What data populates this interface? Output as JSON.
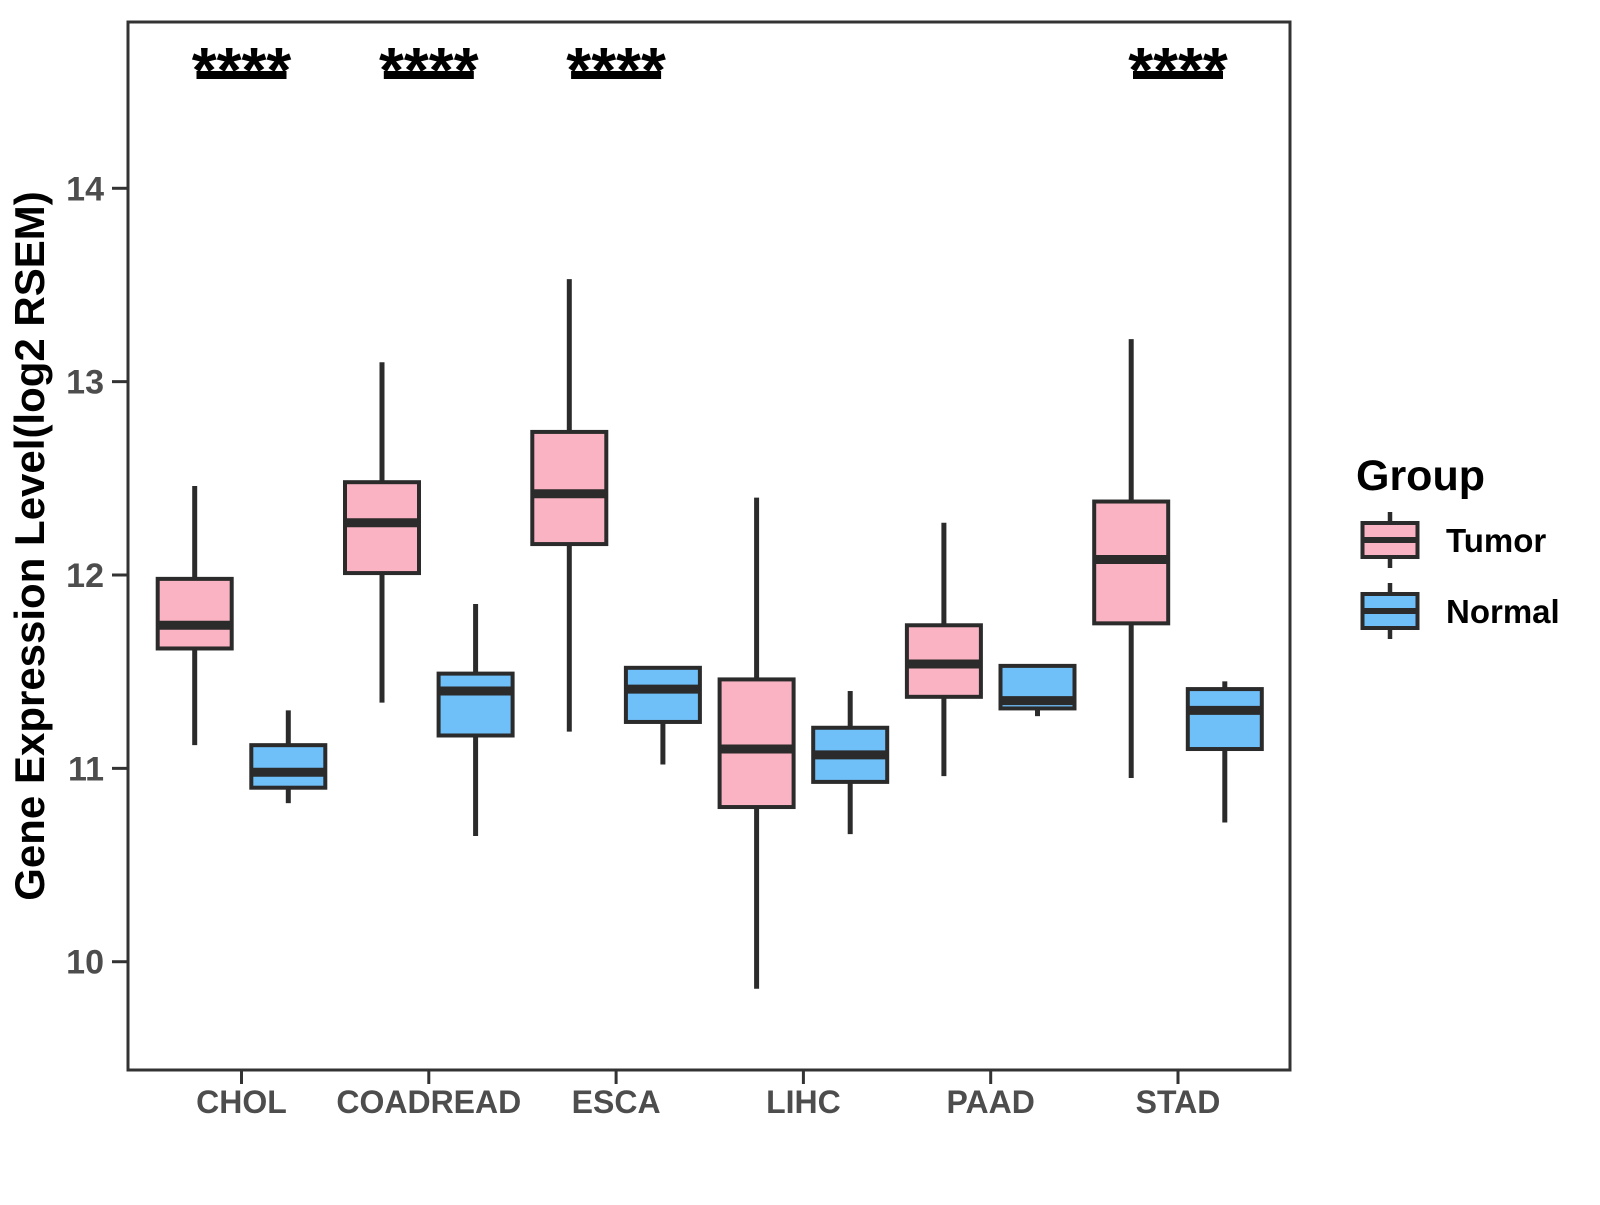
{
  "chart_data": {
    "type": "boxplot",
    "title": "",
    "ylabel": "Gene Expression Level(log2 RSEM)",
    "xlabel": "",
    "categories": [
      "CHOL",
      "COADREAD",
      "ESCA",
      "LIHC",
      "PAAD",
      "STAD"
    ],
    "y_ticks": [
      10,
      11,
      12,
      13,
      14
    ],
    "y_tick_labels": [
      "10",
      "11",
      "12",
      "13",
      "14"
    ],
    "ylim": [
      9.44,
      14.86
    ],
    "grid": false,
    "legend_position": "right",
    "series": [
      {
        "name": "Tumor",
        "color": "#F9B3C3",
        "boxes": [
          {
            "category": "CHOL",
            "min": 11.12,
            "q1": 11.62,
            "median": 11.74,
            "q3": 11.98,
            "max": 12.46
          },
          {
            "category": "COADREAD",
            "min": 11.34,
            "q1": 12.01,
            "median": 12.27,
            "q3": 12.48,
            "max": 13.1
          },
          {
            "category": "ESCA",
            "min": 11.19,
            "q1": 12.16,
            "median": 12.42,
            "q3": 12.74,
            "max": 13.53
          },
          {
            "category": "LIHC",
            "min": 9.86,
            "q1": 10.8,
            "median": 11.1,
            "q3": 11.46,
            "max": 12.4
          },
          {
            "category": "PAAD",
            "min": 10.96,
            "q1": 11.37,
            "median": 11.54,
            "q3": 11.74,
            "max": 12.27
          },
          {
            "category": "STAD",
            "min": 10.95,
            "q1": 11.75,
            "median": 12.08,
            "q3": 12.38,
            "max": 13.22
          }
        ]
      },
      {
        "name": "Normal",
        "color": "#6FBFF8",
        "boxes": [
          {
            "category": "CHOL",
            "min": 10.82,
            "q1": 10.9,
            "median": 10.98,
            "q3": 11.12,
            "max": 11.3
          },
          {
            "category": "COADREAD",
            "min": 10.65,
            "q1": 11.17,
            "median": 11.4,
            "q3": 11.49,
            "max": 11.85
          },
          {
            "category": "ESCA",
            "min": 11.02,
            "q1": 11.24,
            "median": 11.41,
            "q3": 11.52,
            "max": 11.52
          },
          {
            "category": "LIHC",
            "min": 10.66,
            "q1": 10.93,
            "median": 11.07,
            "q3": 11.21,
            "max": 11.4
          },
          {
            "category": "PAAD",
            "min": 11.27,
            "q1": 11.31,
            "median": 11.35,
            "q3": 11.53,
            "max": 11.53
          },
          {
            "category": "STAD",
            "min": 10.72,
            "q1": 11.1,
            "median": 11.3,
            "q3": 11.41,
            "max": 11.45
          }
        ]
      }
    ],
    "significance": [
      {
        "category": "CHOL",
        "label": "****"
      },
      {
        "category": "COADREAD",
        "label": "****"
      },
      {
        "category": "ESCA",
        "label": "****"
      },
      {
        "category": "STAD",
        "label": "****"
      }
    ]
  },
  "legend": {
    "title": "Group",
    "items": [
      {
        "label": "Tumor",
        "color": "#F9B3C3"
      },
      {
        "label": "Normal",
        "color": "#6FBFF8"
      }
    ]
  },
  "style": {
    "box_stroke": "#2B2B2B",
    "axis_color": "#333333",
    "tick_label_color": "#4D4D4D",
    "text_color": "#000000",
    "background": "#FFFFFF"
  }
}
